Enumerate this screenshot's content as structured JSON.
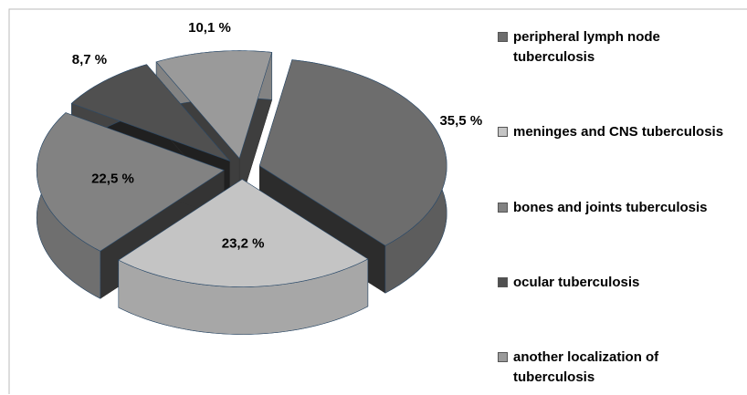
{
  "chart_data": {
    "type": "pie",
    "categories": [
      "peripheral lymph node tuberculosis",
      "meninges and CNS tuberculosis",
      "bones and joints tuberculosis",
      "ocular tuberculosis",
      "another localization of tuberculosis"
    ],
    "values": [
      35.5,
      23.2,
      22.5,
      8.7,
      10.1
    ],
    "value_labels": [
      "35,5 %",
      "23,2 %",
      "22,5 %",
      "8,7 %",
      "10,1 %"
    ],
    "colors": [
      "#6d6d6d",
      "#c4c4c4",
      "#828282",
      "#505050",
      "#9a9a9a"
    ],
    "legend": "right"
  }
}
